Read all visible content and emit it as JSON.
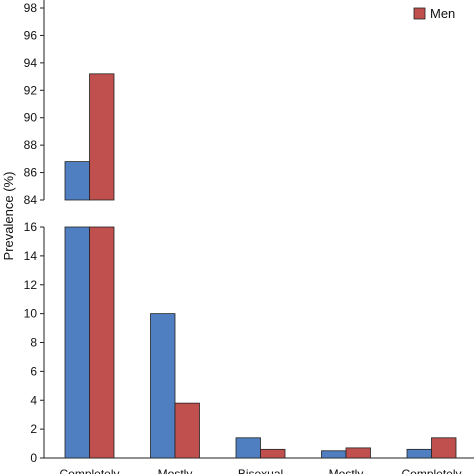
{
  "chart_data": {
    "type": "bar",
    "ylabel": "Prevalence (%)",
    "categories": [
      "Completely",
      "Mostly",
      "Bisexual",
      "Mostly",
      "Completely"
    ],
    "series": [
      {
        "name": "",
        "color": "#4f7fc1",
        "values": [
          86.8,
          10.0,
          1.4,
          0.5,
          0.6
        ]
      },
      {
        "name": "Men",
        "color": "#c0504d",
        "values": [
          93.2,
          3.8,
          0.6,
          0.7,
          1.4
        ]
      }
    ],
    "axis_break": true,
    "lower_ylim": [
      0,
      16
    ],
    "lower_yticks": [
      0,
      2,
      4,
      6,
      8,
      10,
      12,
      14,
      16
    ],
    "upper_ylim": [
      84,
      98
    ],
    "upper_yticks": [
      84,
      86,
      88,
      90,
      92,
      94,
      96,
      98
    ],
    "legend": {
      "position": "top-right",
      "entries": [
        "Men"
      ]
    },
    "grid": false
  }
}
